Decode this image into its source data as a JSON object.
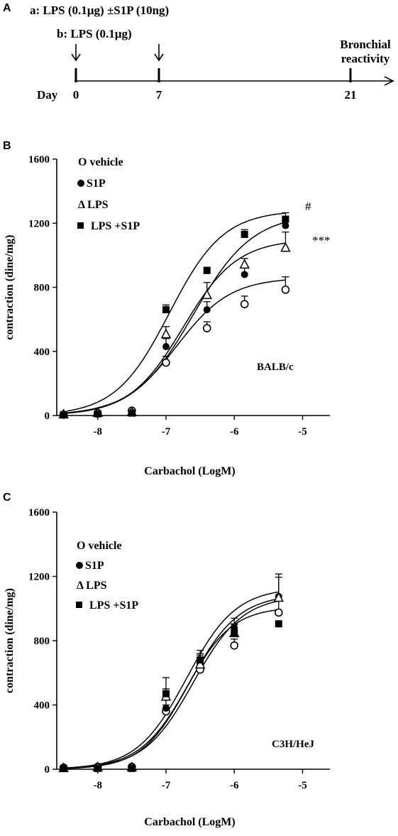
{
  "panel_a": {
    "letter": "A",
    "protocol_a": "a: LPS (0.1µg) ±S1P (10ng)",
    "protocol_b": "b:  LPS (0.1µg)",
    "day_label": "Day",
    "days": [
      "0",
      "7",
      "21"
    ],
    "endpoint": [
      "Bronchial",
      "reactivity"
    ]
  },
  "chart_data": [
    {
      "panel": "B",
      "type": "line",
      "strain": "BALB/c",
      "xlabel": "Carbachol (LogM)",
      "ylabel": "contraction (dine/mg)",
      "xlim": [
        -8.6,
        -4.6
      ],
      "ylim": [
        0,
        1600
      ],
      "x_ticks": [
        -8,
        -7,
        -6,
        -5
      ],
      "y_ticks": [
        0,
        400,
        800,
        1200,
        1600
      ],
      "significance": [
        "#",
        "***"
      ],
      "legend": [
        "O vehicle",
        "S1P",
        "Δ LPS",
        "LPS +S1P"
      ],
      "series": [
        {
          "marker": "open-circle",
          "x": [
            -8.5,
            -8.0,
            -7.5,
            -7.0,
            -6.4,
            -5.85,
            -5.25
          ],
          "y": [
            5,
            15,
            30,
            330,
            545,
            695,
            785
          ],
          "err": [
            0,
            0,
            0,
            40,
            40,
            50,
            80
          ],
          "fit": {
            "ec50": -6.85,
            "top": 860,
            "slope": 1.1
          }
        },
        {
          "marker": "filled-circle",
          "x": [
            -8.5,
            -8.0,
            -7.5,
            -7.0,
            -6.4,
            -5.85,
            -5.25
          ],
          "y": [
            5,
            15,
            20,
            430,
            660,
            880,
            1185
          ],
          "err": [
            0,
            0,
            0,
            50,
            50,
            40,
            40
          ],
          "fit": {
            "ec50": -6.6,
            "top": 1260,
            "slope": 1.0
          }
        },
        {
          "marker": "open-triangle",
          "x": [
            -8.5,
            -8.0,
            -7.5,
            -7.0,
            -6.4,
            -5.85,
            -5.25
          ],
          "y": [
            5,
            15,
            20,
            505,
            750,
            940,
            1045
          ],
          "err": [
            0,
            0,
            0,
            50,
            80,
            40,
            100
          ],
          "fit": {
            "ec50": -6.75,
            "top": 1100,
            "slope": 1.1
          }
        },
        {
          "marker": "filled-square",
          "x": [
            -8.5,
            -8.0,
            -7.5,
            -7.0,
            -6.4,
            -5.85,
            -5.25
          ],
          "y": [
            5,
            10,
            15,
            660,
            905,
            1130,
            1225
          ],
          "err": [
            0,
            0,
            0,
            30,
            20,
            30,
            40
          ],
          "fit": {
            "ec50": -6.95,
            "top": 1280,
            "slope": 1.1
          }
        }
      ]
    },
    {
      "panel": "C",
      "type": "line",
      "strain": "C3H/HeJ",
      "xlabel": "Carbachol (LogM)",
      "ylabel": "contraction (dine/mg)",
      "xlim": [
        -8.6,
        -4.6
      ],
      "ylim": [
        0,
        1600
      ],
      "x_ticks": [
        -8,
        -7,
        -6,
        -5
      ],
      "y_ticks": [
        0,
        400,
        800,
        1200,
        1600
      ],
      "legend": [
        "O vehicle",
        "S1P",
        "Δ LPS",
        "LPS +S1P"
      ],
      "series": [
        {
          "marker": "open-circle",
          "x": [
            -8.5,
            -8.0,
            -7.5,
            -7.0,
            -6.5,
            -6.0,
            -5.35
          ],
          "y": [
            10,
            15,
            15,
            360,
            620,
            770,
            975
          ],
          "err": [
            0,
            0,
            0,
            40,
            40,
            40,
            80
          ],
          "fit": {
            "ec50": -6.6,
            "top": 1080,
            "slope": 1.2
          }
        },
        {
          "marker": "filled-circle",
          "x": [
            -8.5,
            -8.0,
            -7.5,
            -7.0,
            -6.5,
            -6.0,
            -5.35
          ],
          "y": [
            10,
            15,
            10,
            380,
            660,
            880,
            1075
          ],
          "err": [
            0,
            0,
            0,
            60,
            60,
            60,
            120
          ],
          "fit": {
            "ec50": -6.65,
            "top": 1090,
            "slope": 1.2
          }
        },
        {
          "marker": "open-triangle",
          "x": [
            -8.5,
            -8.0,
            -7.5,
            -7.0,
            -6.5,
            -6.0,
            -5.35
          ],
          "y": [
            5,
            10,
            10,
            450,
            650,
            845,
            1065
          ],
          "err": [
            0,
            0,
            0,
            50,
            60,
            60,
            150
          ],
          "fit": {
            "ec50": -6.7,
            "top": 1130,
            "slope": 1.2
          }
        },
        {
          "marker": "filled-square",
          "x": [
            -8.5,
            -8.0,
            -7.5,
            -7.0,
            -6.5,
            -6.0,
            -5.35
          ],
          "y": [
            5,
            5,
            5,
            470,
            680,
            850,
            905
          ],
          "err": [
            0,
            0,
            0,
            100,
            60,
            50,
            0
          ],
          "fit": {
            "ec50": -6.7,
            "top": 1010,
            "slope": 1.3
          }
        }
      ]
    }
  ]
}
